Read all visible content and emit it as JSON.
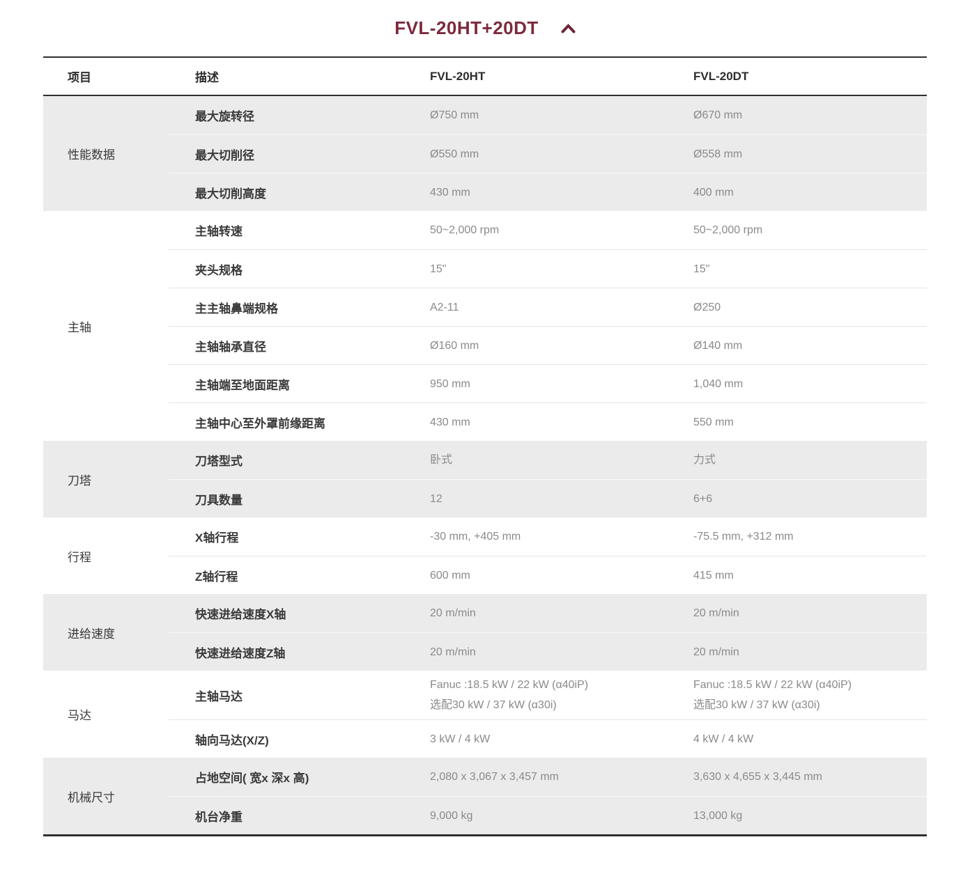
{
  "accordion": {
    "title": "FVL-20HT+20DT",
    "collapse_icon": "chevron-up-icon",
    "expanded": true
  },
  "colors": {
    "accent": "#7b2b3d",
    "section_alt_bg": "#ebebeb",
    "header_text": "#2d2d2d",
    "label_text": "#3a3a3a",
    "value_text": "#8a8a8a",
    "table_border": "#2f2f2f"
  },
  "table": {
    "headers": [
      "项目",
      "描述",
      "FVL-20HT",
      "FVL-20DT"
    ],
    "sections": [
      {
        "name": "性能数据",
        "bg": "gray",
        "rows": [
          {
            "desc": "最大旋转径",
            "ht": "Ø750 mm",
            "dt": "Ø670 mm"
          },
          {
            "desc": "最大切削径",
            "ht": "Ø550 mm",
            "dt": "Ø558 mm"
          },
          {
            "desc": "最大切削高度",
            "ht": "430 mm",
            "dt": "400 mm"
          }
        ]
      },
      {
        "name": "主轴",
        "bg": "white",
        "rows": [
          {
            "desc": "主轴转速",
            "ht": "50~2,000 rpm",
            "dt": "50~2,000 rpm"
          },
          {
            "desc": "夹头规格",
            "ht": "15\"",
            "dt": "15\""
          },
          {
            "desc": "主主轴鼻端规格",
            "ht": "A2-11",
            "dt": "Ø250"
          },
          {
            "desc": "主轴轴承直径",
            "ht": "Ø160 mm",
            "dt": "Ø140 mm"
          },
          {
            "desc": "主轴端至地面距离",
            "ht": "950 mm",
            "dt": "1,040 mm"
          },
          {
            "desc": "主轴中心至外罩前缘距离",
            "ht": "430 mm",
            "dt": "550 mm"
          }
        ]
      },
      {
        "name": "刀塔",
        "bg": "gray",
        "rows": [
          {
            "desc": "刀塔型式",
            "ht": "卧式",
            "dt": "力式"
          },
          {
            "desc": "刀具数量",
            "ht": "12",
            "dt": "6+6"
          }
        ]
      },
      {
        "name": "行程",
        "bg": "white",
        "rows": [
          {
            "desc": "X轴行程",
            "ht": "-30 mm, +405 mm",
            "dt": "-75.5 mm, +312 mm"
          },
          {
            "desc": "Z轴行程",
            "ht": "600 mm",
            "dt": "415 mm"
          }
        ]
      },
      {
        "name": "进给速度",
        "bg": "gray",
        "rows": [
          {
            "desc": "快速进给速度X轴",
            "ht": "20 m/min",
            "dt": "20 m/min"
          },
          {
            "desc": "快速进给速度Z轴",
            "ht": "20 m/min",
            "dt": "20 m/min"
          }
        ]
      },
      {
        "name": "马达",
        "bg": "white",
        "rows": [
          {
            "desc": "主轴马达",
            "ht": "Fanuc :18.5 kW / 22 kW (α40iP)\n选配30 kW / 37 kW (α30i)",
            "dt": "Fanuc :18.5 kW / 22 kW (α40iP)\n选配30 kW / 37 kW (α30i)"
          },
          {
            "desc": "轴向马达(X/Z)",
            "ht": "3 kW / 4 kW",
            "dt": "4 kW / 4 kW"
          }
        ]
      },
      {
        "name": "机械尺寸",
        "bg": "gray",
        "rows": [
          {
            "desc": "占地空间( 宽x 深x 高)",
            "ht": "2,080 x 3,067 x 3,457 mm",
            "dt": "3,630 x 4,655 x 3,445 mm"
          },
          {
            "desc": "机台净重",
            "ht": "9,000 kg",
            "dt": "13,000 kg"
          }
        ]
      }
    ]
  }
}
